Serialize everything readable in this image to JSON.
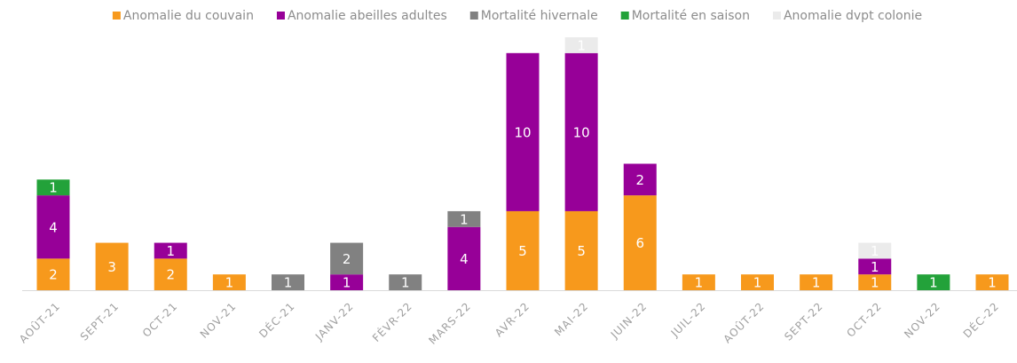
{
  "chart_data": {
    "type": "stacked-bar",
    "categories": [
      "AOÛT-21",
      "SEPT-21",
      "OCT-21",
      "NOV-21",
      "DÉC-21",
      "JANV-22",
      "FÉVR-22",
      "MARS-22",
      "AVR-22",
      "MAI-22",
      "JUIN-22",
      "JUIL-22",
      "AOÛT-22",
      "SEPT-22",
      "OCT-22",
      "NOV-22",
      "DÉC-22"
    ],
    "series": [
      {
        "name": "Anomalie du couvain",
        "color": "#f7991c",
        "values": [
          2,
          3,
          2,
          1,
          null,
          null,
          null,
          null,
          5,
          5,
          6,
          1,
          1,
          1,
          1,
          null,
          1
        ]
      },
      {
        "name": "Anomalie abeilles adultes",
        "color": "#970098",
        "values": [
          4,
          null,
          1,
          null,
          null,
          1,
          null,
          4,
          10,
          10,
          2,
          null,
          null,
          null,
          1,
          null,
          null
        ]
      },
      {
        "name": "Mortalité hivernale",
        "color": "#818181",
        "values": [
          null,
          null,
          null,
          null,
          1,
          2,
          1,
          1,
          null,
          null,
          null,
          null,
          null,
          null,
          null,
          null,
          null
        ]
      },
      {
        "name": "Mortalité en saison",
        "color": "#23a23a",
        "values": [
          1,
          null,
          null,
          null,
          null,
          null,
          null,
          null,
          null,
          null,
          null,
          null,
          null,
          null,
          null,
          1,
          null
        ]
      },
      {
        "name": "Anomalie dvpt colonie",
        "color": "#ebebeb",
        "values": [
          null,
          null,
          null,
          null,
          null,
          null,
          null,
          null,
          null,
          1,
          null,
          null,
          null,
          null,
          1,
          null,
          null
        ]
      }
    ],
    "legend": "top"
  }
}
